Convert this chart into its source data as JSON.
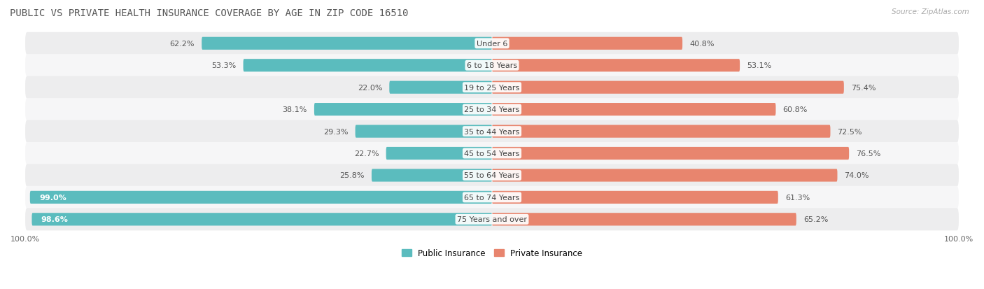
{
  "title": "Public vs Private Health Insurance Coverage by Age in Zip Code 16510",
  "source": "Source: ZipAtlas.com",
  "categories": [
    "Under 6",
    "6 to 18 Years",
    "19 to 25 Years",
    "25 to 34 Years",
    "35 to 44 Years",
    "45 to 54 Years",
    "55 to 64 Years",
    "65 to 74 Years",
    "75 Years and over"
  ],
  "public_values": [
    62.2,
    53.3,
    22.0,
    38.1,
    29.3,
    22.7,
    25.8,
    99.0,
    98.6
  ],
  "private_values": [
    40.8,
    53.1,
    75.4,
    60.8,
    72.5,
    76.5,
    74.0,
    61.3,
    65.2
  ],
  "public_color": "#5bbcbe",
  "private_color": "#e8856e",
  "row_color_odd": "#ededee",
  "row_color_even": "#f6f6f7",
  "title_fontsize": 10,
  "label_fontsize": 8,
  "cat_fontsize": 8,
  "bar_height": 0.58,
  "figsize": [
    14.06,
    4.14
  ],
  "dpi": 100,
  "bg_color": "#ffffff",
  "inside_label_threshold": 85
}
